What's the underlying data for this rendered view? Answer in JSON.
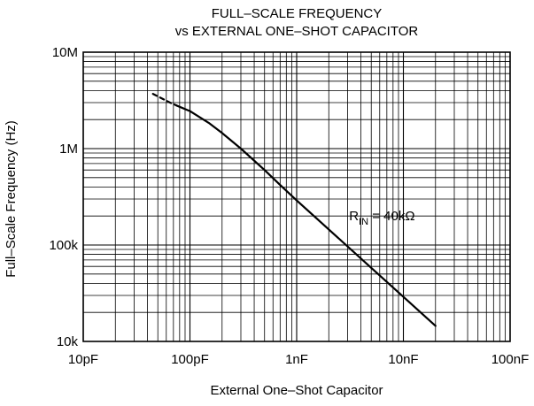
{
  "chart_data": {
    "type": "line",
    "title": [
      "FULL–SCALE FREQUENCY",
      "vs EXTERNAL ONE–SHOT CAPACITOR"
    ],
    "xlabel": "External One–Shot Capacitor",
    "ylabel": "Full–Scale Frequency (Hz)",
    "x_scale": "log",
    "y_scale": "log",
    "x_unit": "F",
    "y_unit": "Hz",
    "xlim": [
      1e-11,
      1e-07
    ],
    "ylim": [
      10000,
      10000000
    ],
    "x_ticks": [
      {
        "value": 1e-11,
        "label": "10pF"
      },
      {
        "value": 1e-10,
        "label": "100pF"
      },
      {
        "value": 1e-09,
        "label": "1nF"
      },
      {
        "value": 1e-08,
        "label": "10nF"
      },
      {
        "value": 1e-07,
        "label": "100nF"
      }
    ],
    "y_ticks": [
      {
        "value": 10000,
        "label": "10k"
      },
      {
        "value": 100000,
        "label": "100k"
      },
      {
        "value": 1000000,
        "label": "1M"
      },
      {
        "value": 10000000,
        "label": "10M"
      }
    ],
    "grid": true,
    "series": [
      {
        "name": "",
        "style": "dashed",
        "x": [
          4.5e-11,
          5.5e-11,
          6.5e-11,
          7.5e-11
        ],
        "y": [
          3700000,
          3300000,
          3000000,
          2800000
        ]
      },
      {
        "name": "",
        "style": "solid",
        "x": [
          7.5e-11,
          1e-10,
          1.5e-10,
          2e-10,
          3e-10,
          5e-10,
          7e-10,
          1e-09,
          2e-09,
          5e-09,
          1e-08,
          2e-08
        ],
        "y": [
          2800000,
          2450000,
          1850000,
          1450000,
          1000000,
          600000,
          420000,
          290000,
          145000,
          58000,
          29000,
          14500
        ]
      }
    ],
    "annotations": [
      {
        "main": "R",
        "sub": "IN",
        "rest": " = 40kΩ",
        "x": 3.1e-09,
        "y": 180000
      }
    ]
  }
}
